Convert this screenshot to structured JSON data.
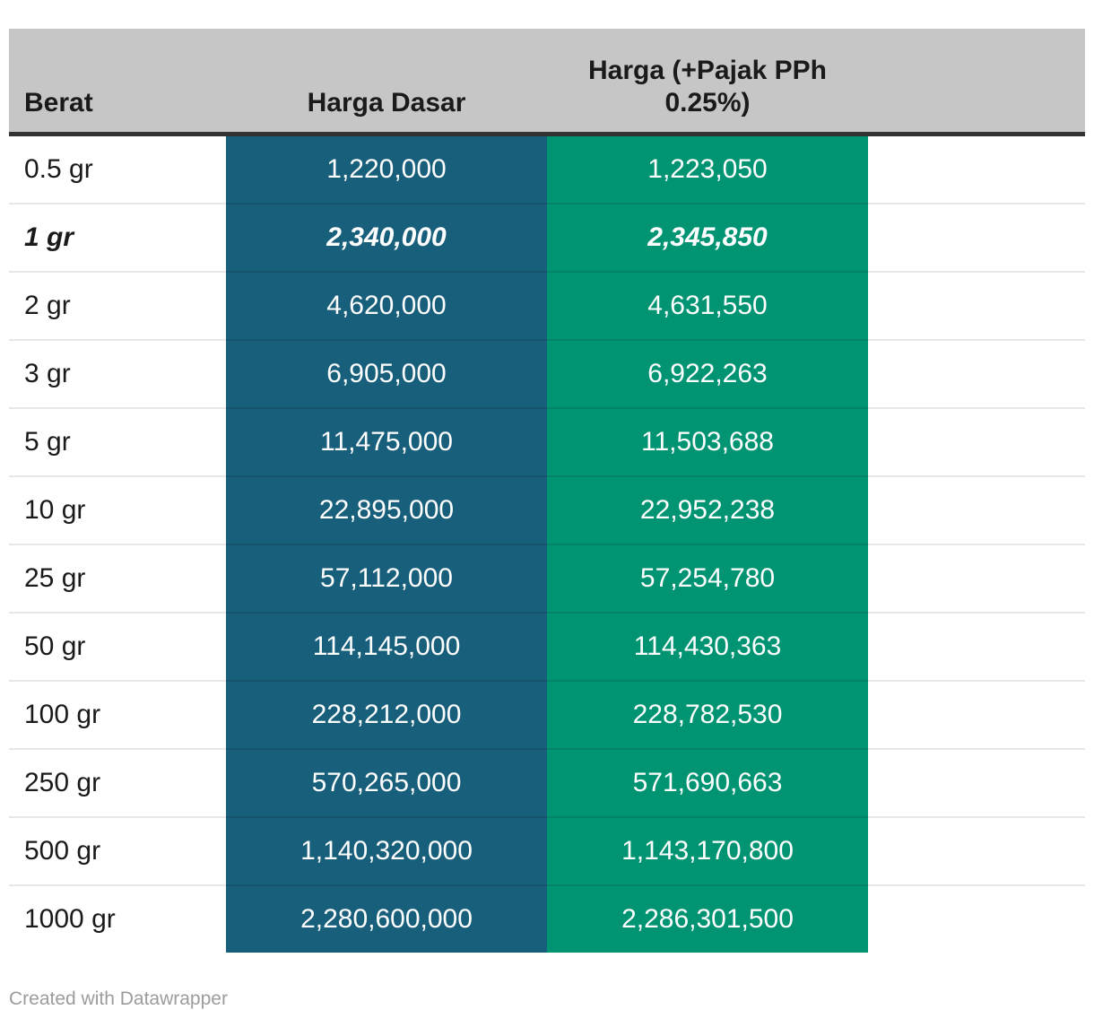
{
  "chart_data": {
    "type": "table",
    "columns": [
      "Berat",
      "Harga Dasar",
      "Harga (+Pajak PPh 0.25%)"
    ],
    "rows": [
      {
        "weight": "0.5 gr",
        "base": "1,220,000",
        "taxed": "1,223,050",
        "highlight": false
      },
      {
        "weight": "1 gr",
        "base": "2,340,000",
        "taxed": "2,345,850",
        "highlight": true
      },
      {
        "weight": "2 gr",
        "base": "4,620,000",
        "taxed": "4,631,550",
        "highlight": false
      },
      {
        "weight": "3 gr",
        "base": "6,905,000",
        "taxed": "6,922,263",
        "highlight": false
      },
      {
        "weight": "5 gr",
        "base": "11,475,000",
        "taxed": "11,503,688",
        "highlight": false
      },
      {
        "weight": "10 gr",
        "base": "22,895,000",
        "taxed": "22,952,238",
        "highlight": false
      },
      {
        "weight": "25 gr",
        "base": "57,112,000",
        "taxed": "57,254,780",
        "highlight": false
      },
      {
        "weight": "50 gr",
        "base": "114,145,000",
        "taxed": "114,430,363",
        "highlight": false
      },
      {
        "weight": "100 gr",
        "base": "228,212,000",
        "taxed": "228,782,530",
        "highlight": false
      },
      {
        "weight": "250 gr",
        "base": "570,265,000",
        "taxed": "571,690,663",
        "highlight": false
      },
      {
        "weight": "500 gr",
        "base": "1,140,320,000",
        "taxed": "1,143,170,800",
        "highlight": false
      },
      {
        "weight": "1000 gr",
        "base": "2,280,600,000",
        "taxed": "2,286,301,500",
        "highlight": false
      }
    ]
  },
  "footer": {
    "credit": "Created with Datawrapper"
  },
  "colors": {
    "header_bg": "#c6c6c6",
    "header_border": "#333333",
    "base_col_bg": "#185f7b",
    "base_col_divider": "#16536c",
    "tax_col_bg": "#009473",
    "tax_col_divider": "#008465",
    "row_divider": "#e8e8e8",
    "text_dark": "#1a1a1a",
    "value_text": "#ffffff",
    "footer_text": "#9c9c9c"
  }
}
